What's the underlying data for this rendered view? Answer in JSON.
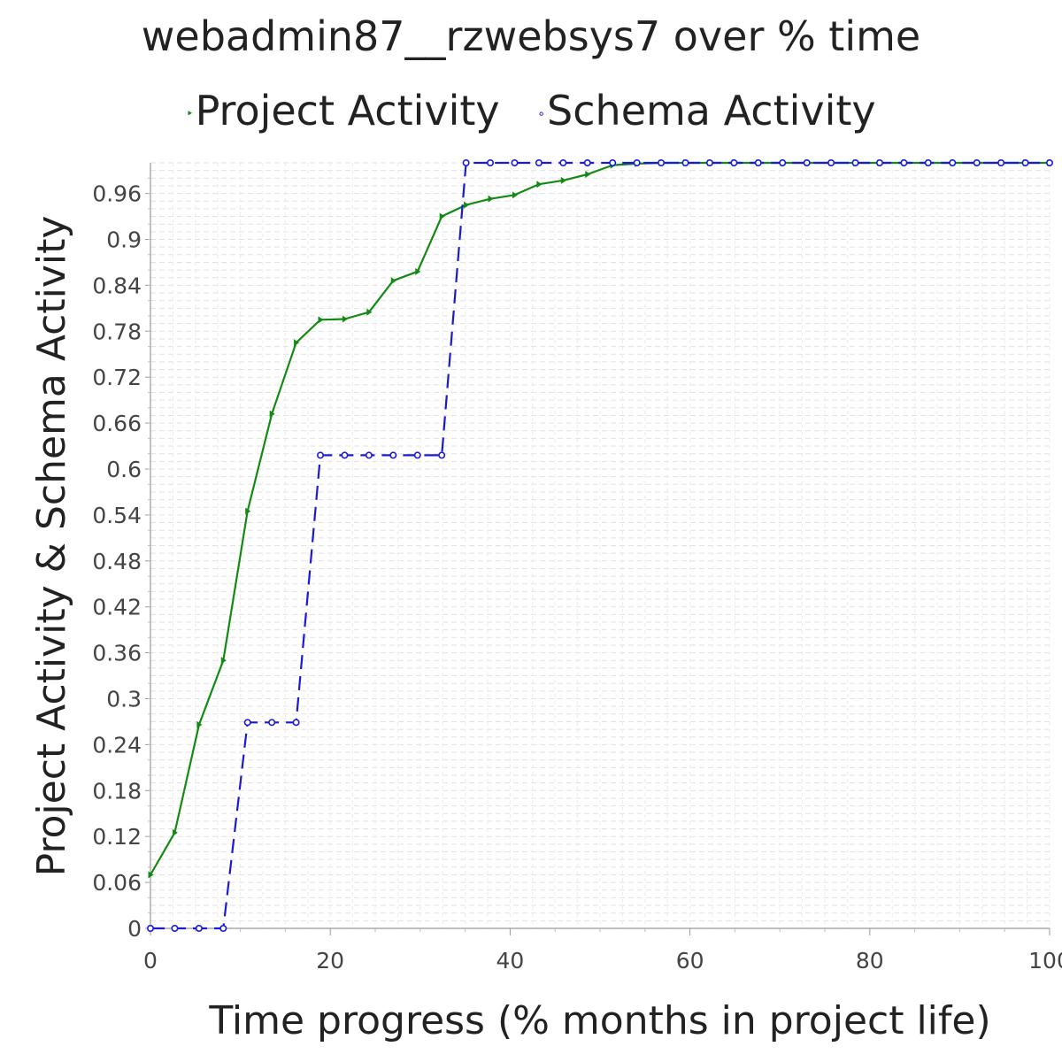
{
  "chart_data": {
    "type": "line",
    "title": "webadmin87__rzwebsys7 over % time",
    "xlabel": "Time progress (% months in project life)",
    "ylabel": "Project Activity & Schema Activity",
    "xlim": [
      0,
      100
    ],
    "ylim": [
      0,
      1.0
    ],
    "xticks": [
      0,
      20,
      40,
      60,
      80,
      100
    ],
    "xtick_labels": [
      "0",
      "20",
      "40",
      "60",
      "80",
      "100"
    ],
    "yticks": [
      0,
      0.06,
      0.12,
      0.18,
      0.24,
      0.3,
      0.36,
      0.42,
      0.48,
      0.54,
      0.6,
      0.66,
      0.72,
      0.78,
      0.84,
      0.9,
      0.96
    ],
    "ytick_labels": [
      "0",
      "0.06",
      "0.12",
      "0.18",
      "0.24",
      "0.3",
      "0.36",
      "0.42",
      "0.48",
      "0.54",
      "0.6",
      "0.66",
      "0.72",
      "0.78",
      "0.84",
      "0.9",
      "0.96"
    ],
    "grid": true,
    "legend_position": "top",
    "series": [
      {
        "name": "Project Activity",
        "color": "#138a13",
        "line_style": "solid",
        "marker": "triangle-right",
        "x": [
          0,
          2.7,
          5.4,
          8.1,
          10.8,
          13.5,
          16.2,
          18.9,
          21.6,
          24.3,
          27,
          29.7,
          32.4,
          35.1,
          37.8,
          40.5,
          43.2,
          45.9,
          48.6,
          51.4,
          54.1,
          56.8,
          59.5,
          62.2,
          64.9,
          67.6,
          70.3,
          73,
          75.7,
          78.4,
          81.1,
          83.8,
          86.5,
          89.2,
          91.9,
          94.6,
          97.3,
          100
        ],
        "y": [
          0.07,
          0.125,
          0.266,
          0.35,
          0.545,
          0.672,
          0.765,
          0.795,
          0.796,
          0.805,
          0.846,
          0.858,
          0.93,
          0.945,
          0.953,
          0.958,
          0.972,
          0.977,
          0.985,
          0.997,
          0.999,
          1.0,
          1.0,
          1.0,
          1.0,
          1.0,
          1.0,
          1.0,
          1.0,
          1.0,
          1.0,
          1.0,
          1.0,
          1.0,
          1.0,
          1.0,
          1.0,
          1.0
        ]
      },
      {
        "name": "Schema Activity",
        "color": "#1a1ad6",
        "line_style": "dashed",
        "marker": "circle",
        "x": [
          0,
          2.7,
          5.4,
          8.1,
          10.8,
          13.5,
          16.2,
          18.9,
          21.6,
          24.3,
          27,
          29.7,
          32.4,
          35.1,
          37.8,
          40.5,
          43.2,
          45.9,
          48.6,
          51.4,
          54.1,
          56.8,
          59.5,
          62.2,
          64.9,
          67.6,
          70.3,
          73,
          75.7,
          78.4,
          81.1,
          83.8,
          86.5,
          89.2,
          91.9,
          94.6,
          97.3,
          100
        ],
        "y": [
          0,
          0,
          0,
          0,
          0.269,
          0.269,
          0.269,
          0.618,
          0.618,
          0.618,
          0.618,
          0.618,
          0.618,
          1.0,
          1.0,
          1.0,
          1.0,
          1.0,
          1.0,
          1.0,
          1.0,
          1.0,
          1.0,
          1.0,
          1.0,
          1.0,
          1.0,
          1.0,
          1.0,
          1.0,
          1.0,
          1.0,
          1.0,
          1.0,
          1.0,
          1.0,
          1.0,
          1.0
        ]
      }
    ]
  },
  "legend": {
    "items": [
      {
        "marker": "‣",
        "label": "Project Activity",
        "color": "#138a13"
      },
      {
        "marker": "∘",
        "label": "Schema Activity",
        "color": "#1a1ad6"
      }
    ]
  }
}
